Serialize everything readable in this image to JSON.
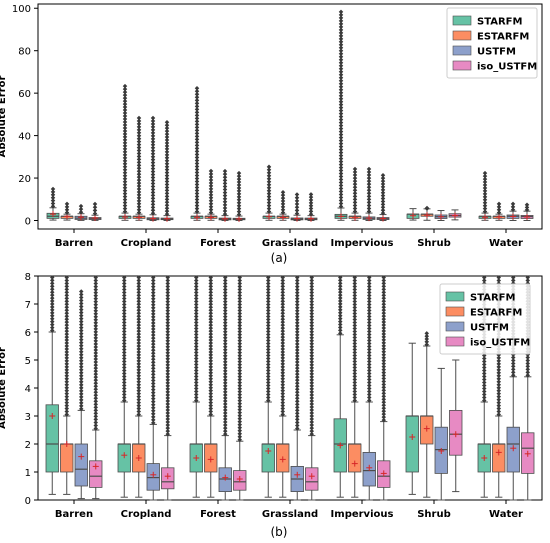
{
  "figure": {
    "captions": [
      "(a)",
      "(b)"
    ]
  },
  "colors": {
    "STARFM": "#66c2a5",
    "ESTARFM": "#fc8d62",
    "USTFM": "#8da0cb",
    "iso_USTFM": "#e78ac3",
    "mean_marker": "#d62728",
    "axis": "#000000",
    "median": "#4d4d4d",
    "legend_frame": "#cccccc"
  },
  "chart_data": [
    {
      "type": "box",
      "panel": "(a)",
      "title": "",
      "xlabel": "",
      "ylabel": "Absolute Error",
      "ylim": [
        -4,
        102
      ],
      "yticks": [
        0,
        20,
        40,
        60,
        80,
        100
      ],
      "grid": false,
      "legend": {
        "position": "top-right",
        "entries": [
          "STARFM",
          "ESTARFM",
          "USTFM",
          "iso_USTFM"
        ]
      },
      "categories": [
        "Barren",
        "Cropland",
        "Forest",
        "Grassland",
        "Impervious",
        "Shrub",
        "Water"
      ],
      "series": [
        {
          "name": "STARFM",
          "boxes": [
            {
              "whislo": 0.2,
              "q1": 1.0,
              "med": 2.0,
              "q3": 3.4,
              "whishi": 6.0,
              "mean": 3.0,
              "outlier_max": 15.5
            },
            {
              "whislo": 0.1,
              "q1": 1.0,
              "med": 2.0,
              "q3": 2.0,
              "whishi": 3.5,
              "mean": 1.6,
              "outlier_max": 64
            },
            {
              "whislo": 0.1,
              "q1": 1.0,
              "med": 2.0,
              "q3": 2.0,
              "whishi": 3.5,
              "mean": 1.5,
              "outlier_max": 63
            },
            {
              "whislo": 0.1,
              "q1": 1.0,
              "med": 2.0,
              "q3": 2.0,
              "whishi": 3.5,
              "mean": 1.75,
              "outlier_max": 26
            },
            {
              "whislo": 0.1,
              "q1": 1.0,
              "med": 2.0,
              "q3": 2.9,
              "whishi": 5.9,
              "mean": 1.95,
              "outlier_max": 99
            },
            {
              "whislo": 0.2,
              "q1": 1.0,
              "med": 3.0,
              "q3": 3.0,
              "whishi": 5.6,
              "mean": 2.25,
              "outlier_max": 5.6
            },
            {
              "whislo": 0.1,
              "q1": 1.0,
              "med": 2.0,
              "q3": 2.0,
              "whishi": 3.5,
              "mean": 1.5,
              "outlier_max": 23
            }
          ]
        },
        {
          "name": "ESTARFM",
          "boxes": [
            {
              "whislo": 0.2,
              "q1": 1.0,
              "med": 2.0,
              "q3": 2.0,
              "whishi": 3.0,
              "mean": 2.0,
              "outlier_max": 8.5
            },
            {
              "whislo": 0.1,
              "q1": 1.0,
              "med": 2.0,
              "q3": 2.0,
              "whishi": 3.0,
              "mean": 1.5,
              "outlier_max": 49
            },
            {
              "whislo": 0.1,
              "q1": 1.0,
              "med": 2.0,
              "q3": 2.0,
              "whishi": 3.0,
              "mean": 1.45,
              "outlier_max": 24
            },
            {
              "whislo": 0.1,
              "q1": 1.0,
              "med": 2.0,
              "q3": 2.0,
              "whishi": 3.0,
              "mean": 1.45,
              "outlier_max": 14
            },
            {
              "whislo": 0.1,
              "q1": 1.0,
              "med": 2.0,
              "q3": 2.0,
              "whishi": 3.5,
              "mean": 1.3,
              "outlier_max": 25
            },
            {
              "whislo": 0.1,
              "q1": 2.0,
              "med": 3.0,
              "q3": 3.0,
              "whishi": 5.5,
              "mean": 2.55,
              "outlier_max": 6.0
            },
            {
              "whislo": 0.1,
              "q1": 1.0,
              "med": 2.0,
              "q3": 2.0,
              "whishi": 3.0,
              "mean": 1.7,
              "outlier_max": 8.5
            }
          ]
        },
        {
          "name": "USTFM",
          "boxes": [
            {
              "whislo": 0.05,
              "q1": 0.5,
              "med": 1.1,
              "q3": 2.0,
              "whishi": 3.2,
              "mean": 1.55,
              "outlier_max": 7.5
            },
            {
              "whislo": 0.0,
              "q1": 0.35,
              "med": 0.8,
              "q3": 1.3,
              "whishi": 2.7,
              "mean": 0.9,
              "outlier_max": 49
            },
            {
              "whislo": 0.0,
              "q1": 0.3,
              "med": 0.75,
              "q3": 1.15,
              "whishi": 2.3,
              "mean": 0.8,
              "outlier_max": 24
            },
            {
              "whislo": 0.0,
              "q1": 0.3,
              "med": 0.75,
              "q3": 1.2,
              "whishi": 2.5,
              "mean": 0.9,
              "outlier_max": 13
            },
            {
              "whislo": 0.0,
              "q1": 0.5,
              "med": 1.05,
              "q3": 1.7,
              "whishi": 3.5,
              "mean": 1.15,
              "outlier_max": 25
            },
            {
              "whislo": 0.0,
              "q1": 0.95,
              "med": 1.8,
              "q3": 2.6,
              "whishi": 4.7,
              "mean": 1.75,
              "outlier_max": 4.7
            },
            {
              "whislo": 0.0,
              "q1": 1.0,
              "med": 2.0,
              "q3": 2.6,
              "whishi": 4.4,
              "mean": 1.85,
              "outlier_max": 8.5
            }
          ]
        },
        {
          "name": "iso_USTFM",
          "boxes": [
            {
              "whislo": 0.05,
              "q1": 0.45,
              "med": 0.85,
              "q3": 1.4,
              "whishi": 2.5,
              "mean": 1.2,
              "outlier_max": 8.5
            },
            {
              "whislo": 0.0,
              "q1": 0.4,
              "med": 0.65,
              "q3": 1.15,
              "whishi": 2.3,
              "mean": 0.85,
              "outlier_max": 47
            },
            {
              "whislo": 0.0,
              "q1": 0.35,
              "med": 0.65,
              "q3": 1.05,
              "whishi": 2.1,
              "mean": 0.75,
              "outlier_max": 23
            },
            {
              "whislo": 0.0,
              "q1": 0.35,
              "med": 0.65,
              "q3": 1.15,
              "whishi": 2.3,
              "mean": 0.85,
              "outlier_max": 13
            },
            {
              "whislo": 0.0,
              "q1": 0.45,
              "med": 0.85,
              "q3": 1.4,
              "whishi": 2.8,
              "mean": 0.95,
              "outlier_max": 22
            },
            {
              "whislo": 0.3,
              "q1": 1.6,
              "med": 2.35,
              "q3": 3.2,
              "whishi": 5.0,
              "mean": 2.35,
              "outlier_max": 5.0
            },
            {
              "whislo": 0.0,
              "q1": 0.95,
              "med": 1.85,
              "q3": 2.4,
              "whishi": 4.4,
              "mean": 1.65,
              "outlier_max": 8.0
            }
          ]
        }
      ]
    },
    {
      "type": "box",
      "panel": "(b)",
      "title": "",
      "xlabel": "",
      "ylabel": "Absolute Error",
      "ylim": [
        0,
        8
      ],
      "yticks": [
        0,
        1,
        2,
        3,
        4,
        5,
        6,
        7,
        8
      ],
      "grid": false,
      "legend": {
        "position": "top-right",
        "entries": [
          "STARFM",
          "ESTARFM",
          "USTFM",
          "iso_USTFM"
        ]
      },
      "categories": [
        "Barren",
        "Cropland",
        "Forest",
        "Grassland",
        "Impervious",
        "Shrub",
        "Water"
      ],
      "note": "same distributions as panel (a), axis limited to 0-8"
    }
  ]
}
